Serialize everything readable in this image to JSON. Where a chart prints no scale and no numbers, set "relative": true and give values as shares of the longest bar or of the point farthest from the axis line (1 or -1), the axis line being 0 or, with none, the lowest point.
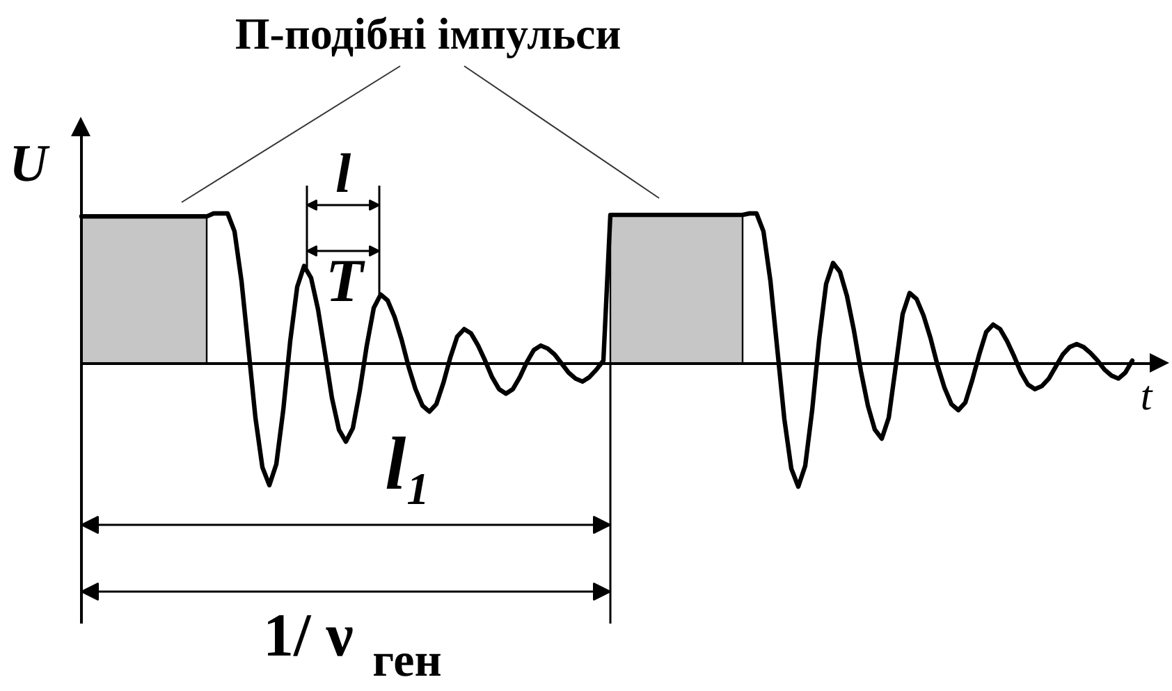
{
  "chart_data": {
    "type": "line",
    "relative": true,
    "title": "П-подібні імпульси",
    "xlabel": "t",
    "ylabel": "U",
    "annotations": [
      "l",
      "T",
      "l₁",
      "1/ ν$_{ген}$"
    ],
    "categories": [
      null,
      null,
      null,
      null,
      null,
      null,
      null,
      null,
      null,
      null,
      null,
      null,
      null,
      null,
      null,
      null,
      null,
      null,
      null,
      null,
      null,
      null,
      null,
      null,
      null,
      null,
      null,
      null,
      null,
      null,
      null,
      null,
      null,
      null,
      null,
      null,
      null,
      null,
      null,
      null,
      null,
      null,
      null,
      null,
      null,
      null,
      null,
      null,
      null,
      null,
      null,
      null,
      null,
      null,
      null,
      null,
      null,
      null,
      null,
      null,
      null,
      null,
      null,
      null,
      null,
      null,
      null,
      null,
      null,
      null,
      null,
      null,
      null,
      null,
      null,
      null,
      null,
      null,
      null,
      null,
      null,
      null,
      null,
      null,
      null,
      null,
      null,
      null,
      null,
      null,
      null,
      null,
      null,
      null,
      null,
      null,
      null,
      null,
      null,
      null,
      null,
      null,
      null,
      null,
      null,
      null,
      null,
      null,
      null,
      null,
      null,
      null,
      null,
      null,
      null,
      null,
      null,
      null,
      null,
      null,
      null,
      null,
      null,
      null,
      null,
      null,
      null,
      null,
      null,
      null,
      null,
      null,
      null,
      null,
      null,
      null,
      null,
      null,
      null,
      null,
      null,
      null,
      null,
      null,
      null,
      null,
      null,
      null,
      null,
      null,
      null,
      null
    ],
    "series": [
      {
        "type": "area",
        "color": "#c6c6c6",
        "values": [
          0.98,
          0.98,
          0.98,
          0.98,
          0.98,
          0.98,
          0.98,
          0.98,
          0.98,
          0.98,
          0.98,
          0.98,
          0.98,
          0.98,
          0.98,
          0.98,
          0.98,
          0.98,
          0.98,
          null,
          null,
          null,
          null,
          null,
          null,
          null,
          null,
          null,
          null,
          null,
          null,
          null,
          null,
          null,
          null,
          null,
          null,
          null,
          null,
          null,
          null,
          null,
          null,
          null,
          null,
          null,
          null,
          null,
          null,
          null,
          null,
          null,
          null,
          null,
          null,
          null,
          null,
          null,
          null,
          null,
          null,
          null,
          null,
          null,
          null,
          null,
          null,
          null,
          null,
          null,
          null,
          null,
          null,
          null,
          null,
          null,
          null,
          null,
          null,
          null,
          null,
          null,
          null,
          null,
          null,
          null,
          null,
          null,
          null,
          null,
          null,
          null,
          null,
          null,
          null,
          null,
          null,
          null,
          null,
          null,
          null,
          null,
          null,
          null,
          null,
          null,
          null,
          null,
          null,
          null,
          null,
          null,
          null,
          null,
          null,
          null,
          null,
          null,
          null,
          null,
          null,
          null,
          null,
          null,
          null,
          null,
          null,
          null,
          null,
          null,
          null,
          null,
          null,
          null,
          null,
          null,
          null,
          null,
          null,
          null,
          null,
          null,
          null,
          null,
          null,
          null,
          null,
          null,
          null,
          null,
          null,
          null
        ]
      },
      {
        "type": "area",
        "color": "#c6c6c6",
        "values": [
          null,
          null,
          null,
          null,
          null,
          null,
          null,
          null,
          null,
          null,
          null,
          null,
          null,
          null,
          null,
          null,
          null,
          null,
          null,
          null,
          null,
          null,
          null,
          null,
          null,
          null,
          null,
          null,
          null,
          null,
          null,
          null,
          null,
          null,
          null,
          null,
          null,
          null,
          null,
          null,
          null,
          null,
          null,
          null,
          null,
          null,
          null,
          null,
          null,
          null,
          null,
          null,
          null,
          null,
          null,
          null,
          null,
          null,
          null,
          null,
          null,
          null,
          null,
          null,
          null,
          null,
          null,
          null,
          null,
          null,
          null,
          null,
          null,
          null,
          null,
          null,
          0.99,
          0.99,
          0.99,
          0.99,
          0.99,
          0.99,
          0.99,
          0.99,
          0.99,
          0.99,
          0.99,
          0.99,
          0.99,
          0.99,
          0.99,
          0.99,
          0.99,
          0.99,
          0.99,
          0.99,
          null,
          null,
          null,
          null,
          null,
          null,
          null,
          null,
          null,
          null,
          null,
          null,
          null,
          null,
          null,
          null,
          null,
          null,
          null,
          null,
          null,
          null,
          null,
          null,
          null,
          null,
          null,
          null,
          null,
          null,
          null,
          null,
          null,
          null,
          null,
          null,
          null,
          null,
          null,
          null,
          null,
          null,
          null,
          null,
          null,
          null,
          null,
          null,
          null,
          null,
          null,
          null,
          null,
          null,
          null,
          null
        ]
      },
      {
        "color": "#000000",
        "values": [
          0.98,
          0.98,
          0.98,
          0.98,
          0.98,
          0.98,
          0.98,
          0.98,
          0.98,
          0.98,
          0.98,
          0.98,
          0.98,
          0.98,
          0.98,
          0.98,
          0.98,
          0.98,
          0.98,
          1.0,
          1.0,
          1.0,
          0.88,
          0.55,
          0.1,
          -0.36,
          -0.69,
          -0.81,
          -0.67,
          -0.31,
          0.15,
          0.51,
          0.65,
          0.57,
          0.36,
          0.07,
          -0.23,
          -0.44,
          -0.52,
          -0.43,
          -0.18,
          0.12,
          0.37,
          0.46,
          0.42,
          0.31,
          0.16,
          -0.02,
          -0.17,
          -0.28,
          -0.32,
          -0.27,
          -0.13,
          0.04,
          0.18,
          0.23,
          0.2,
          0.12,
          0.02,
          -0.09,
          -0.17,
          -0.2,
          -0.17,
          -0.09,
          0.01,
          0.09,
          0.12,
          0.1,
          0.06,
          0.0,
          -0.06,
          -0.1,
          -0.12,
          -0.09,
          -0.04,
          0.02,
          0.99,
          0.99,
          0.99,
          0.99,
          0.99,
          0.99,
          0.99,
          0.99,
          0.99,
          0.99,
          0.99,
          0.99,
          0.99,
          0.99,
          0.99,
          0.99,
          0.99,
          0.99,
          0.99,
          0.99,
          1.0,
          1.0,
          0.88,
          0.55,
          0.09,
          -0.37,
          -0.7,
          -0.82,
          -0.68,
          -0.31,
          0.16,
          0.53,
          0.67,
          0.61,
          0.45,
          0.22,
          -0.05,
          -0.28,
          -0.44,
          -0.5,
          -0.36,
          -0.02,
          0.33,
          0.47,
          0.43,
          0.32,
          0.17,
          -0.01,
          -0.16,
          -0.27,
          -0.31,
          -0.26,
          -0.11,
          0.06,
          0.21,
          0.26,
          0.23,
          0.15,
          0.05,
          -0.06,
          -0.14,
          -0.17,
          -0.15,
          -0.1,
          -0.02,
          0.06,
          0.11,
          0.13,
          0.11,
          0.07,
          0.02,
          -0.04,
          -0.08,
          -0.1,
          -0.06,
          0.02
        ]
      }
    ]
  }
}
